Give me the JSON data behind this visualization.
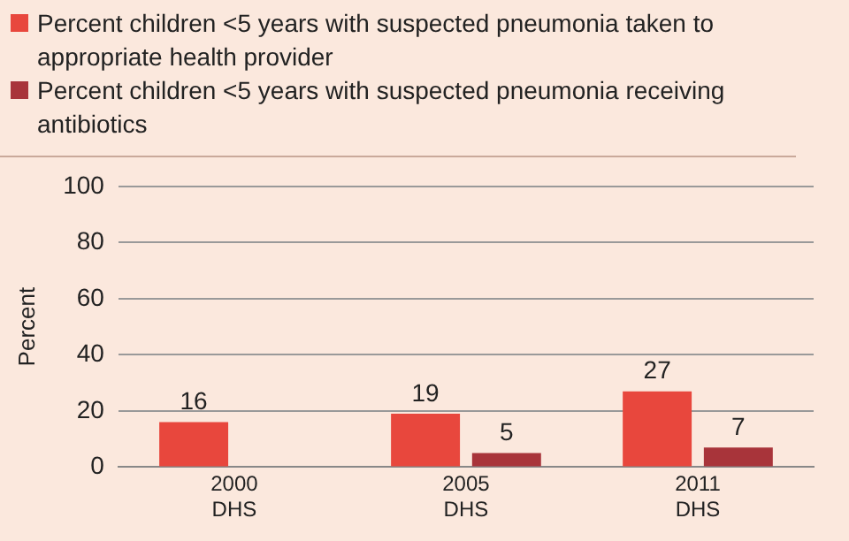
{
  "chart_data": {
    "type": "bar",
    "ylabel": "Percent",
    "categories": [
      "2000\nDHS",
      "2005\nDHS",
      "2011\nDHS"
    ],
    "series": [
      {
        "name": "Percent children <5 years with suspected pneumonia taken to appropriate health provider",
        "color": "#e8473d",
        "values": [
          16,
          19,
          27
        ]
      },
      {
        "name": "Percent children <5 years with suspected pneumonia receiving antibiotics",
        "color": "#a8343a",
        "values": [
          null,
          5,
          7
        ]
      }
    ],
    "ylim": [
      0,
      100
    ],
    "yticks": [
      0,
      20,
      40,
      60,
      80,
      100
    ],
    "grid": "y",
    "legend": "top",
    "data_labels": true
  }
}
